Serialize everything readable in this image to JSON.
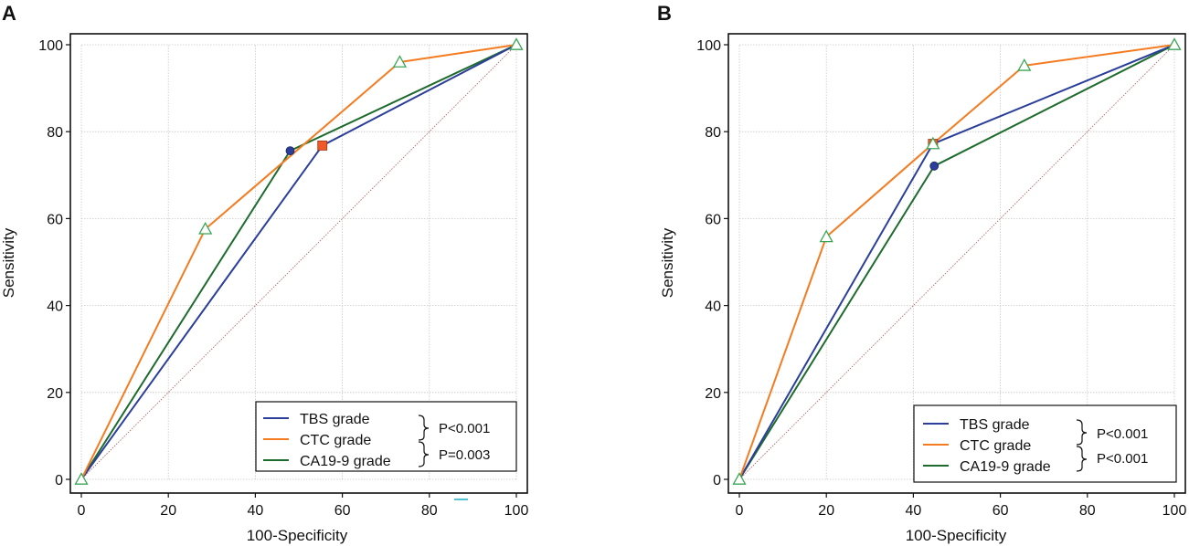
{
  "chart_data": [
    {
      "type": "line",
      "panel_label": "A",
      "xlabel": "100-Specificity",
      "ylabel": "Sensitivity",
      "xlim": [
        0,
        100
      ],
      "ylim": [
        0,
        100
      ],
      "x_ticks": [
        "0",
        "20",
        "40",
        "60",
        "80",
        "100"
      ],
      "y_ticks": [
        "0",
        "20",
        "40",
        "60",
        "80",
        "100"
      ],
      "grid": true,
      "series": [
        {
          "name": "TBS grade",
          "color": "#2b3f9a",
          "x": [
            0,
            55.4,
            100
          ],
          "y": [
            0,
            76.8,
            100
          ],
          "marker": "square",
          "marker_color": "#f05a28",
          "marker_index": 1
        },
        {
          "name": "CTC grade",
          "color": "#f47b20",
          "x": [
            0,
            28.5,
            73.2,
            100
          ],
          "y": [
            0,
            57.6,
            96,
            100
          ],
          "marker": "triangle",
          "marker_color": "#3aa655"
        },
        {
          "name": "CA19-9 grade",
          "color": "#1e6b2e",
          "x": [
            0,
            48,
            100
          ],
          "y": [
            0,
            75.6,
            100
          ],
          "marker": "circle",
          "marker_color": "#2b3f9a",
          "marker_index": 1
        }
      ],
      "reference_line": {
        "x": [
          0,
          100
        ],
        "y": [
          0,
          100
        ],
        "color": "#b06a6a"
      },
      "legend_position": "bottom-right",
      "p_values": [
        "P<0.001",
        "P=0.003"
      ]
    },
    {
      "type": "line",
      "panel_label": "B",
      "xlabel": "100-Specificity",
      "ylabel": "Sensitivity",
      "xlim": [
        0,
        100
      ],
      "ylim": [
        0,
        100
      ],
      "x_ticks": [
        "0",
        "20",
        "40",
        "60",
        "80",
        "100"
      ],
      "y_ticks": [
        "0",
        "20",
        "40",
        "60",
        "80",
        "100"
      ],
      "grid": true,
      "series": [
        {
          "name": "TBS grade",
          "color": "#2b3f9a",
          "x": [
            0,
            44.5,
            100
          ],
          "y": [
            0,
            77.2,
            100
          ],
          "marker": "square",
          "marker_color": "#f05a28",
          "marker_index": 1
        },
        {
          "name": "CTC grade",
          "color": "#f47b20",
          "x": [
            0,
            20,
            44.5,
            65.5,
            100
          ],
          "y": [
            0,
            55.8,
            77.2,
            95.2,
            100
          ],
          "marker": "triangle",
          "marker_color": "#3aa655"
        },
        {
          "name": "CA19-9 grade",
          "color": "#1e6b2e",
          "x": [
            0,
            44.8,
            100
          ],
          "y": [
            0,
            72.1,
            100
          ],
          "marker": "circle",
          "marker_color": "#2b3f9a",
          "marker_index": 1
        }
      ],
      "reference_line": {
        "x": [
          0,
          100
        ],
        "y": [
          0,
          100
        ],
        "color": "#b06a6a"
      },
      "legend_position": "bottom-right",
      "p_values": [
        "P<0.001",
        "P<0.001"
      ]
    }
  ]
}
